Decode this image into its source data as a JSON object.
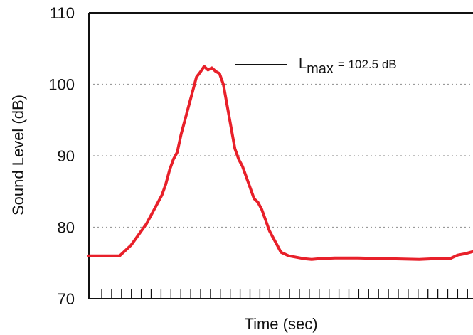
{
  "chart_data": {
    "type": "line",
    "title": "",
    "xlabel": "Time (sec)",
    "ylabel": "Sound Level (dB)",
    "ylim": [
      70,
      110
    ],
    "yticks": [
      "70",
      "80",
      "90",
      "100",
      "110"
    ],
    "xlim": [
      0,
      100
    ],
    "grid": "horizontal dotted at 80, 90, 100",
    "minor_ticks_on_x": true,
    "series": [
      {
        "color": "#e8202a",
        "x": [
          0,
          4,
          8,
          9,
          11,
          13,
          15,
          17,
          19,
          20,
          21,
          22,
          23,
          24,
          25,
          26,
          27,
          28,
          29,
          30,
          31,
          32,
          33,
          34,
          35,
          36,
          37,
          38,
          39,
          40,
          41,
          42,
          43,
          44,
          45,
          46,
          47,
          48,
          49,
          50,
          52,
          54,
          56,
          58,
          60,
          64,
          70,
          78,
          86,
          90,
          94,
          96,
          98,
          100
        ],
        "values": [
          76.0,
          76.0,
          76.0,
          76.5,
          77.5,
          79.0,
          80.5,
          82.5,
          84.5,
          86.0,
          88.0,
          89.5,
          90.5,
          93.0,
          95.0,
          97.0,
          99.0,
          101.0,
          101.7,
          102.5,
          102.0,
          102.3,
          101.8,
          101.5,
          100.0,
          97.0,
          94.0,
          91.0,
          89.5,
          88.5,
          87.0,
          85.5,
          84.0,
          83.5,
          82.5,
          81.0,
          79.5,
          78.5,
          77.5,
          76.5,
          76.0,
          75.8,
          75.6,
          75.5,
          75.6,
          75.7,
          75.7,
          75.6,
          75.5,
          75.6,
          75.6,
          76.1,
          76.3,
          76.6
        ]
      }
    ],
    "annotations": [
      {
        "main": "L",
        "subscript": "max",
        "text": "= 102.5 dB"
      }
    ]
  }
}
